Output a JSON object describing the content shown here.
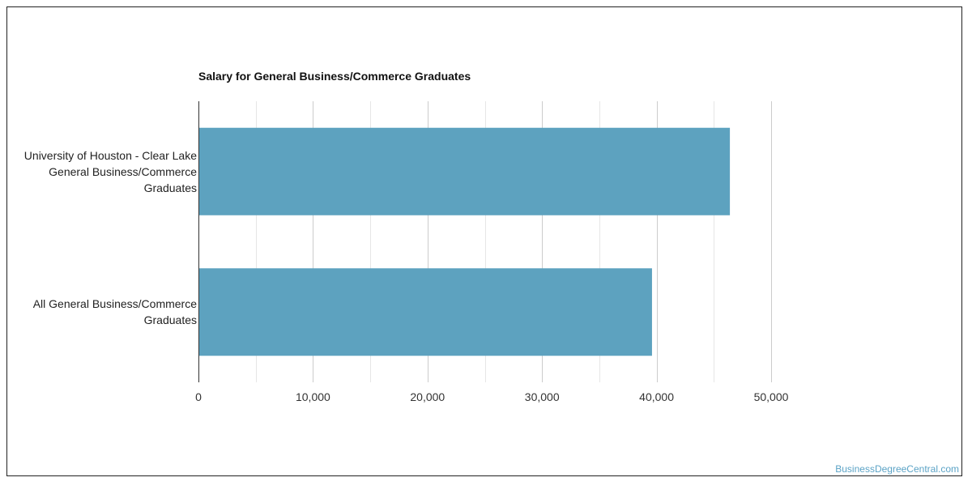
{
  "source_credit": "BusinessDegreeCentral.com",
  "chart_data": {
    "type": "bar",
    "orientation": "horizontal",
    "title": "Salary for General Business/Commerce Graduates",
    "xlabel": "",
    "ylabel": "",
    "categories": [
      [
        "University of Houston - Clear Lake",
        "General Business/Commerce",
        "Graduates"
      ],
      [
        "All General Business/Commerce",
        "Graduates"
      ]
    ],
    "values": [
      46400,
      39600
    ],
    "xlim": [
      0,
      50000
    ],
    "ticks": [
      0,
      10000,
      20000,
      30000,
      40000,
      50000
    ],
    "tick_labels": [
      "0",
      "10,000",
      "20,000",
      "30,000",
      "40,000",
      "50,000"
    ],
    "grid": true,
    "legend": "none",
    "bar_color": "#5da2bf"
  }
}
